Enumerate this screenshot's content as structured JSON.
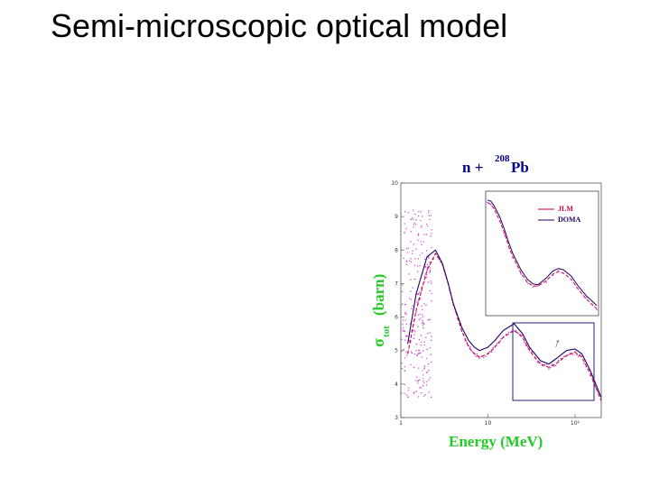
{
  "slide": {
    "title": "Semi-microscopic optical model"
  },
  "chart_data": {
    "type": "line",
    "title_prefix": "n +",
    "title_mass": "208",
    "title_element": "Pb",
    "ylabel_main": "σ",
    "ylabel_sub": "tot",
    "ylabel_unit": "(barn)",
    "xlabel": "Energy (MeV)",
    "x_scale": "log",
    "xlim": [
      1,
      200
    ],
    "ylim": [
      3,
      10
    ],
    "y_ticks": [
      "3",
      "4",
      "5",
      "6",
      "7",
      "8",
      "9",
      "10"
    ],
    "x_ticks": [
      "1",
      "10",
      "10²"
    ],
    "inset_annotation": "↑",
    "legend_position": "inside-inset-top-right",
    "colors": {
      "axis_text": "#22cc22",
      "title_text": "#000088",
      "series_jlm": "#cc0044",
      "series_doma": "#220066",
      "data_points": "#cc44cc",
      "inset_box": "#22227a"
    },
    "series": [
      {
        "name": "JLM",
        "x": [
          1.2,
          1.5,
          2.0,
          2.5,
          3.0,
          3.5,
          4.0,
          5.0,
          6.0,
          7.0,
          8.0,
          10,
          12,
          15,
          20,
          25,
          30,
          40,
          50,
          60,
          80,
          100,
          120,
          150,
          200
        ],
        "values": [
          4.9,
          6.2,
          7.4,
          7.9,
          7.6,
          7.0,
          6.4,
          5.6,
          5.1,
          4.9,
          4.8,
          4.9,
          5.1,
          5.4,
          5.6,
          5.4,
          5.0,
          4.6,
          4.5,
          4.6,
          4.85,
          4.95,
          4.8,
          4.3,
          3.5
        ]
      },
      {
        "name": "DOMA",
        "x": [
          1.2,
          1.5,
          2.0,
          2.5,
          3.0,
          3.5,
          4.0,
          5.0,
          6.0,
          7.0,
          8.0,
          10,
          12,
          15,
          20,
          25,
          30,
          40,
          50,
          60,
          80,
          100,
          120,
          150,
          200
        ],
        "values": [
          5.2,
          6.7,
          7.8,
          8.0,
          7.6,
          7.0,
          6.4,
          5.7,
          5.3,
          5.1,
          5.0,
          5.1,
          5.3,
          5.6,
          5.8,
          5.5,
          5.1,
          4.7,
          4.6,
          4.75,
          5.0,
          5.05,
          4.9,
          4.4,
          3.6
        ]
      }
    ],
    "inset": {
      "xlim": [
        10,
        200
      ],
      "ylim": [
        4.2,
        6.0
      ],
      "series": [
        {
          "name": "JLM",
          "x": [
            10,
            11,
            12,
            14,
            16,
            18,
            20,
            25,
            30,
            35,
            40,
            50,
            60,
            70,
            80,
            100,
            120,
            150,
            200
          ],
          "values": [
            5.88,
            5.85,
            5.78,
            5.6,
            5.4,
            5.2,
            5.05,
            4.8,
            4.65,
            4.6,
            4.6,
            4.68,
            4.78,
            4.82,
            4.8,
            4.7,
            4.55,
            4.4,
            4.25
          ]
        },
        {
          "name": "DOMA",
          "x": [
            10,
            11,
            12,
            14,
            16,
            18,
            20,
            25,
            30,
            35,
            40,
            50,
            60,
            70,
            80,
            100,
            120,
            150,
            200
          ],
          "values": [
            5.92,
            5.9,
            5.83,
            5.66,
            5.46,
            5.26,
            5.1,
            4.85,
            4.7,
            4.63,
            4.62,
            4.72,
            4.83,
            4.87,
            4.85,
            4.75,
            4.6,
            4.45,
            4.3
          ]
        }
      ]
    },
    "grid": false
  }
}
